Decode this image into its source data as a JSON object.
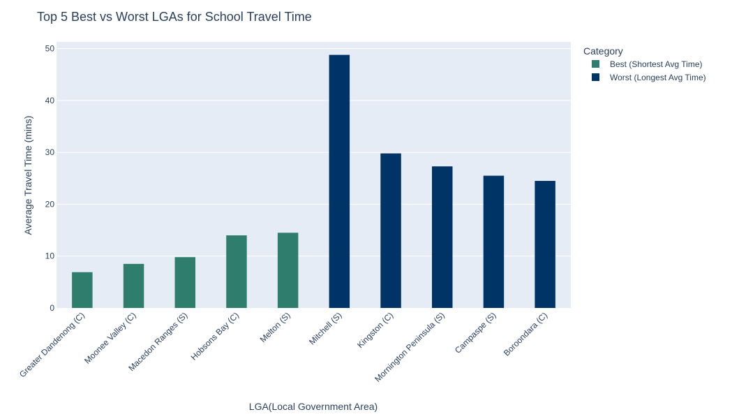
{
  "chart_data": {
    "type": "bar",
    "title": "Top 5 Best vs Worst LGAs for School Travel Time",
    "xlabel": "LGA(Local Government Area)",
    "ylabel": "Average Travel Time (mins)",
    "ylim": [
      0,
      51.3
    ],
    "yticks": [
      0,
      10,
      20,
      30,
      40,
      50
    ],
    "grid": true,
    "legend_position": "top-right",
    "legend_title": "Category",
    "categories": [
      "Greater Dandenong (C)",
      "Moonee Valley (C)",
      "Macedon Ranges (S)",
      "Hobsons Bay (C)",
      "Melton (S)",
      "Mitchell (S)",
      "Kingston (C)",
      "Mornington Peninsula (S)",
      "Campaspe (S)",
      "Boroondara (C)"
    ],
    "series": [
      {
        "name": "Best (Shortest Avg Time)",
        "color": "#2e7d6d",
        "values": [
          6.9,
          8.5,
          9.8,
          14.0,
          14.5,
          null,
          null,
          null,
          null,
          null
        ]
      },
      {
        "name": "Worst (Longest Avg Time)",
        "color": "#003366",
        "values": [
          null,
          null,
          null,
          null,
          null,
          48.8,
          29.8,
          27.3,
          25.5,
          24.5
        ]
      }
    ],
    "colors": {
      "plot_background": "#e5ecf6",
      "gridline": "#ffffff",
      "text": "#2a3f5f"
    }
  }
}
